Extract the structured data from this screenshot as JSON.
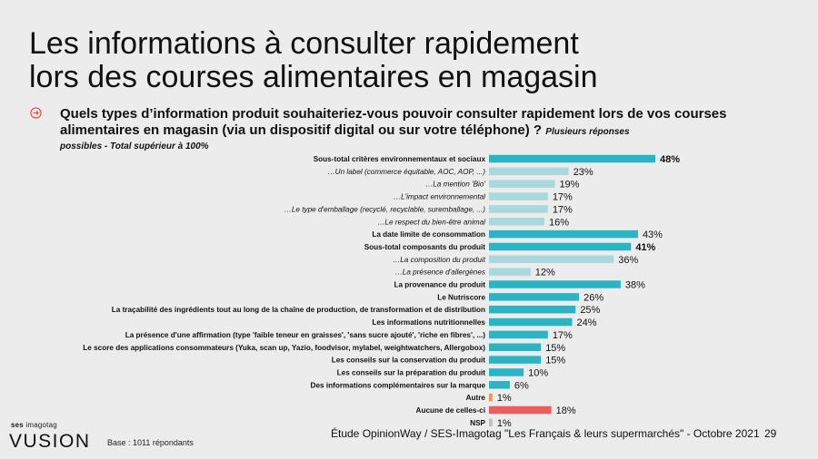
{
  "title": {
    "line1": "Les informations à consulter rapidement",
    "line2": "lors des courses alimentaires en magasin"
  },
  "question": {
    "text": "Quels types d’information produit souhaiteriez-vous pouvoir consulter rapidement lors de vos courses alimentaires en magasin (via un dispositif digital ou sur votre téléphone) ?",
    "note": "Plusieurs réponses",
    "sub": "possibles - Total supérieur à 100%"
  },
  "footer": {
    "source": "Étude OpinionWay / SES-Imagotag \"Les Français & leurs supermarchés\" - Octobre 2021",
    "page": "29",
    "base": "Base : 1011 répondants",
    "logo_small_a": "ses",
    "logo_small_b": " imagotag",
    "logo_big": "VUSION"
  },
  "colors": {
    "teal": "#2bb5c4",
    "light_teal": "#a9d9dd",
    "orange": "#f29a3a",
    "red": "#ee5d5d",
    "grey": "#bfbfbf",
    "background": "#ececec",
    "icon_red": "#e8453c"
  },
  "chart_data": {
    "type": "bar",
    "orientation": "horizontal",
    "xlim": [
      0,
      48
    ],
    "grid": false,
    "categories": [
      "Sous-total critères environnementaux et sociaux",
      "…Un label (commerce équitable, AOC, AOP, ...)",
      "…La mention 'Bio'",
      "…L'impact environnemental",
      "…Le type d'emballage (recyclé, recyclable, suremballage, ...)",
      "…Le respect du bien-être animal",
      "La date limite de consommation",
      "Sous-total composants du produit",
      "…La composition du produit",
      "…La présence d'allergènes",
      "La provenance du produit",
      "Le Nutriscore",
      "La traçabilité des ingrédients tout au long de la chaîne de production, de transformation et de distribution",
      "Les informations nutritionnelles",
      "La présence d'une affirmation (type 'faible teneur en graisses', 'sans sucre ajouté', 'riche en fibres', ...)",
      "Le score des applications consommateurs (Yuka, scan up, Yazio, foodvisor, mylabel, weightwatchers, Allergobox)",
      "Les conseils sur la conservation du produit",
      "Les conseils sur la préparation du produit",
      "Des informations complémentaires sur la marque",
      "Autre",
      "Aucune de celles-ci",
      "NSP"
    ],
    "values": [
      48,
      23,
      19,
      17,
      17,
      16,
      43,
      41,
      36,
      12,
      38,
      26,
      25,
      24,
      17,
      15,
      15,
      10,
      6,
      1,
      18,
      1
    ],
    "value_labels": [
      "48%",
      "23%",
      "19%",
      "17%",
      "17%",
      "16%",
      "43%",
      "41%",
      "36%",
      "12%",
      "38%",
      "26%",
      "25%",
      "24%",
      "17%",
      "15%",
      "15%",
      "10%",
      "6%",
      "1%",
      "18%",
      "1%"
    ],
    "label_style": [
      "bold",
      "italic",
      "italic",
      "italic",
      "italic",
      "italic",
      "bold",
      "bold",
      "italic",
      "italic",
      "bold",
      "bold",
      "bold",
      "bold",
      "bold",
      "bold",
      "bold",
      "bold",
      "bold",
      "bold",
      "bold",
      "bold"
    ],
    "value_bold": [
      true,
      false,
      false,
      false,
      false,
      false,
      false,
      true,
      false,
      false,
      false,
      false,
      false,
      false,
      false,
      false,
      false,
      false,
      false,
      false,
      false,
      false
    ],
    "bar_color": [
      "teal",
      "light_teal",
      "light_teal",
      "light_teal",
      "light_teal",
      "light_teal",
      "teal",
      "teal",
      "light_teal",
      "light_teal",
      "teal",
      "teal",
      "teal",
      "teal",
      "teal",
      "teal",
      "teal",
      "teal",
      "teal",
      "orange",
      "red",
      "grey"
    ]
  }
}
